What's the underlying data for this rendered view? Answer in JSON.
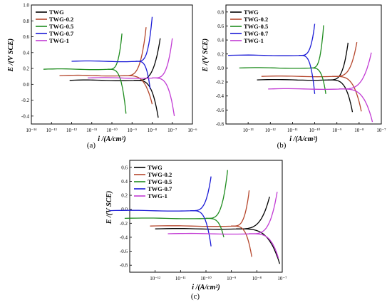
{
  "chart_data": [
    {
      "type": "line",
      "caption": "(a)",
      "xlabel": "i /(A/cm²)",
      "ylabel": "E /(V SCE)",
      "x_scale": "log",
      "xlim": [
        1e-14,
        1e-06
      ],
      "ylim": [
        -0.5,
        1.0
      ],
      "x_tick_labels": [
        "10⁻¹⁴",
        "10⁻¹³",
        "10⁻¹²",
        "10⁻¹¹",
        "10⁻¹⁰",
        "10⁻⁹",
        "10⁻⁸",
        "10⁻⁷",
        "10⁻⁶"
      ],
      "y_ticks": [
        -0.4,
        -0.2,
        0.0,
        0.2,
        0.4,
        0.6,
        0.8,
        1.0
      ],
      "y_tick_labels": [
        "-0.4",
        "-0.2",
        "0.0",
        "0.2",
        "0.4",
        "0.6",
        "0.8",
        "1.0"
      ],
      "legend_position": "top-left",
      "series": [
        {
          "name": "TWG",
          "color": "#000000",
          "ecorr": 0.05,
          "icorr_log": -8.9,
          "cath_end_log": -7.7,
          "cath_end_e": -0.42,
          "anod_end_log": -7.6,
          "anod_end_e": 0.58
        },
        {
          "name": "TWG-0.2",
          "color": "#b5462c",
          "ecorr": 0.11,
          "icorr_log": -9.4,
          "cath_end_log": -8.0,
          "cath_end_e": -0.25,
          "anod_end_log": -8.3,
          "anod_end_e": 0.72
        },
        {
          "name": "TWG-0.5",
          "color": "#1e8c1e",
          "ecorr": 0.19,
          "icorr_log": -10.2,
          "cath_end_log": -9.3,
          "cath_end_e": -0.37,
          "anod_end_log": -9.5,
          "anod_end_e": 0.64
        },
        {
          "name": "TWG-0.7",
          "color": "#1a1ad6",
          "ecorr": 0.29,
          "icorr_log": -8.8,
          "cath_end_log": -8.1,
          "cath_end_e": -0.06,
          "anod_end_log": -8.0,
          "anod_end_e": 0.85
        },
        {
          "name": "TWG-1",
          "color": "#c23bd4",
          "ecorr": 0.08,
          "icorr_log": -8.0,
          "cath_end_log": -6.9,
          "cath_end_e": -0.4,
          "anod_end_log": -7.0,
          "anod_end_e": 0.58
        }
      ]
    },
    {
      "type": "line",
      "caption": "(b)",
      "xlabel": "i /(A/cm²)",
      "ylabel": "E /(V SCE)",
      "x_scale": "log",
      "xlim": [
        1e-14,
        1e-07
      ],
      "ylim": [
        -0.8,
        0.9
      ],
      "x_tick_labels": [
        "10⁻¹³",
        "10⁻¹²",
        "10⁻¹¹",
        "10⁻¹⁰",
        "10⁻⁹",
        "10⁻⁸",
        "10⁻⁷"
      ],
      "y_ticks": [
        -0.8,
        -0.6,
        -0.4,
        -0.2,
        0.0,
        0.2,
        0.4,
        0.6,
        0.8
      ],
      "y_tick_labels": [
        "-0.8",
        "-0.6",
        "-0.4",
        "-0.2",
        "0.0",
        "0.2",
        "0.4",
        "0.6",
        "0.8"
      ],
      "legend_position": "top-left",
      "series": [
        {
          "name": "TWG",
          "color": "#000000",
          "ecorr": -0.17,
          "icorr_log": -9.4,
          "cath_end_log": -8.3,
          "cath_end_e": -0.63,
          "anod_end_log": -8.5,
          "anod_end_e": 0.36
        },
        {
          "name": "TWG-0.2",
          "color": "#b5462c",
          "ecorr": -0.12,
          "icorr_log": -9.2,
          "cath_end_log": -7.9,
          "cath_end_e": -0.62,
          "anod_end_log": -8.1,
          "anod_end_e": 0.37
        },
        {
          "name": "TWG-0.5",
          "color": "#1e8c1e",
          "ecorr": 0.0,
          "icorr_log": -10.2,
          "cath_end_log": -9.5,
          "cath_end_e": -0.37,
          "anod_end_log": -9.6,
          "anod_end_e": 0.61
        },
        {
          "name": "TWG-0.7",
          "color": "#1a1ad6",
          "ecorr": 0.18,
          "icorr_log": -10.7,
          "cath_end_log": -10.0,
          "cath_end_e": -0.37,
          "anod_end_log": -10.0,
          "anod_end_e": 0.63
        },
        {
          "name": "TWG-1",
          "color": "#c23bd4",
          "ecorr": -0.3,
          "icorr_log": -8.9,
          "cath_end_log": -7.4,
          "cath_end_e": -0.77,
          "anod_end_log": -7.45,
          "anod_end_e": 0.22
        }
      ]
    },
    {
      "type": "line",
      "caption": "(c)",
      "xlabel": "i /(A/cm²)",
      "ylabel": "E /(V SCE)",
      "x_scale": "log",
      "xlim": [
        1e-13,
        1e-07
      ],
      "ylim": [
        -0.9,
        0.7
      ],
      "x_tick_labels": [
        "10⁻¹²",
        "10⁻¹¹",
        "10⁻¹⁰",
        "10⁻⁹",
        "10⁻⁸",
        "10⁻⁷"
      ],
      "y_ticks": [
        -0.8,
        -0.6,
        -0.4,
        -0.2,
        0.0,
        0.2,
        0.4,
        0.6
      ],
      "y_tick_labels": [
        "-0.8",
        "-0.6",
        "-0.4",
        "-0.2",
        "0.0",
        "0.2",
        "0.4",
        "0.6"
      ],
      "legend_position": "top-left",
      "series": [
        {
          "name": "TWG",
          "color": "#000000",
          "ecorr": -0.28,
          "icorr_log": -8.8,
          "cath_end_log": -7.1,
          "cath_end_e": -0.78,
          "anod_end_log": -7.5,
          "anod_end_e": 0.18
        },
        {
          "name": "TWG-0.2",
          "color": "#b5462c",
          "ecorr": -0.24,
          "icorr_log": -9.0,
          "cath_end_log": -8.2,
          "cath_end_e": -0.68,
          "anod_end_log": -8.3,
          "anod_end_e": 0.27
        },
        {
          "name": "TWG-0.5",
          "color": "#1e8c1e",
          "ecorr": -0.13,
          "icorr_log": -10.0,
          "cath_end_log": -9.3,
          "cath_end_e": -0.4,
          "anod_end_log": -9.15,
          "anod_end_e": 0.56
        },
        {
          "name": "TWG-0.7",
          "color": "#1a1ad6",
          "ecorr": -0.02,
          "icorr_log": -10.6,
          "cath_end_log": -9.8,
          "cath_end_e": -0.53,
          "anod_end_log": -9.8,
          "anod_end_e": 0.47
        },
        {
          "name": "TWG-1",
          "color": "#c23bd4",
          "ecorr": -0.35,
          "icorr_log": -8.3,
          "cath_end_log": -7.15,
          "cath_end_e": -0.7,
          "anod_end_log": -7.2,
          "anod_end_e": 0.25
        }
      ]
    }
  ]
}
